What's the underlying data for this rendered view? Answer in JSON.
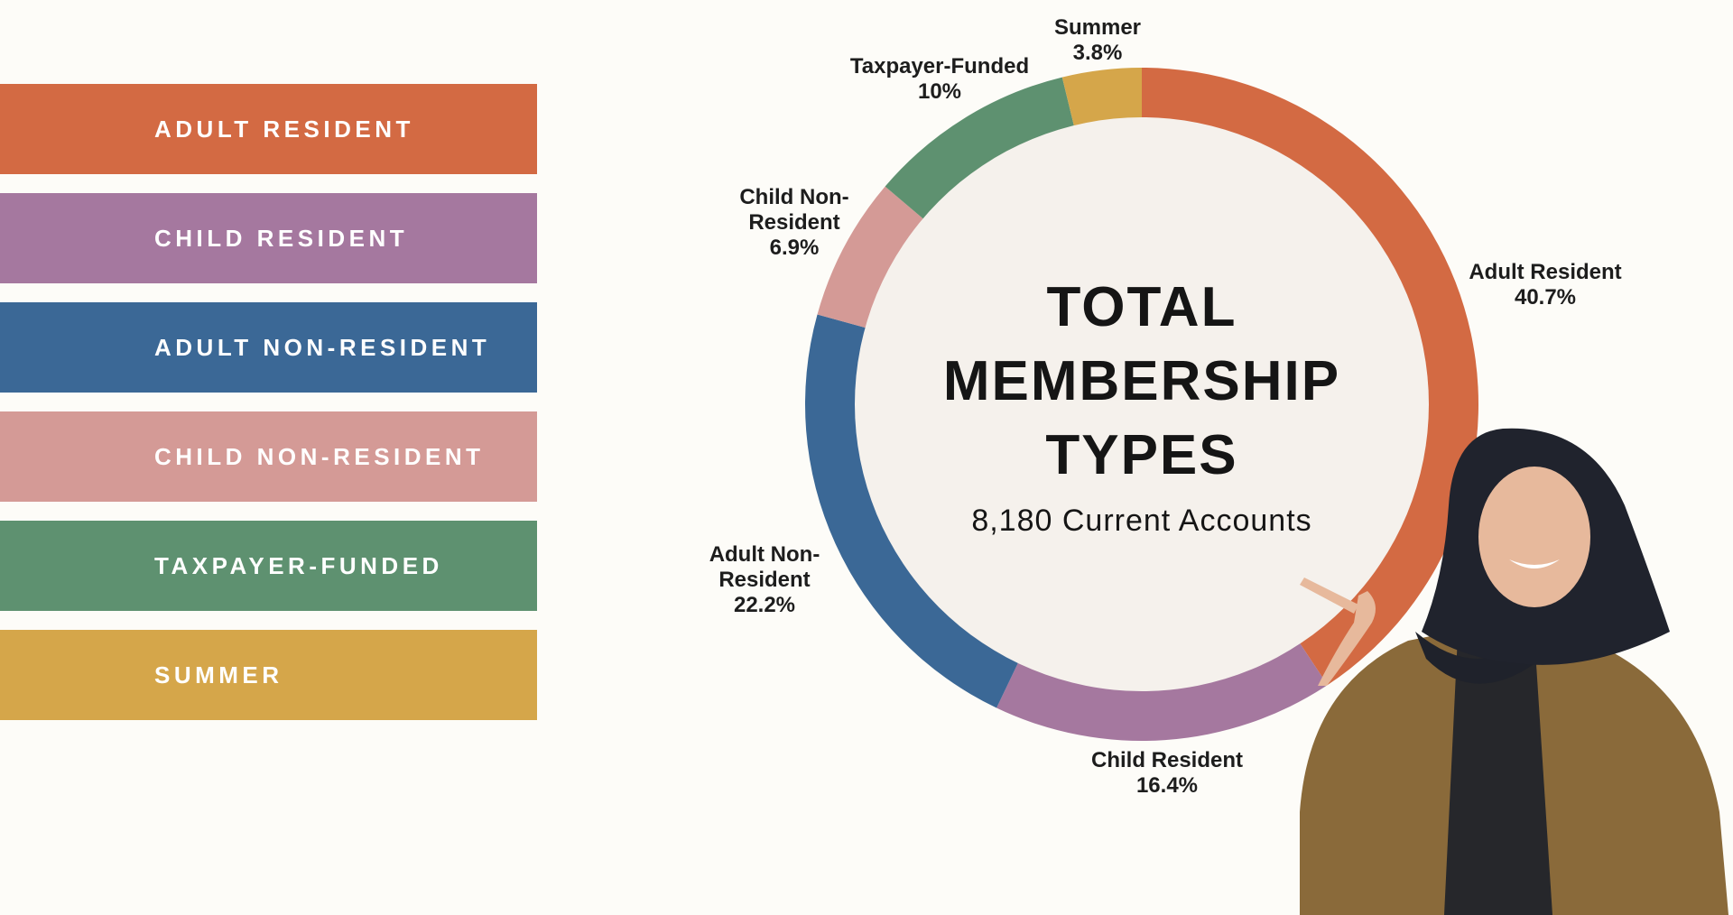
{
  "chart_data": {
    "type": "donut",
    "title": "TOTAL MEMBERSHIP TYPES",
    "subtitle": "8,180 Current Accounts",
    "categories": [
      "Adult Resident",
      "Child Resident",
      "Adult Non-Resident",
      "Child Non-Resident",
      "Taxpayer-Funded",
      "Summer"
    ],
    "legend": [
      "ADULT RESIDENT",
      "CHILD RESIDENT",
      "ADULT NON-RESIDENT",
      "CHILD NON-RESIDENT",
      "TAXPAYER-FUNDED",
      "SUMMER"
    ],
    "values": [
      40.7,
      16.4,
      22.2,
      6.9,
      10,
      3.8
    ],
    "value_labels": [
      "40.7%",
      "16.4%",
      "22.2%",
      "6.9%",
      "10%",
      "3.8%"
    ],
    "colors": [
      "#D36A43",
      "#A5789F",
      "#3B6896",
      "#D49A96",
      "#5E9170",
      "#D5A64A"
    ]
  }
}
